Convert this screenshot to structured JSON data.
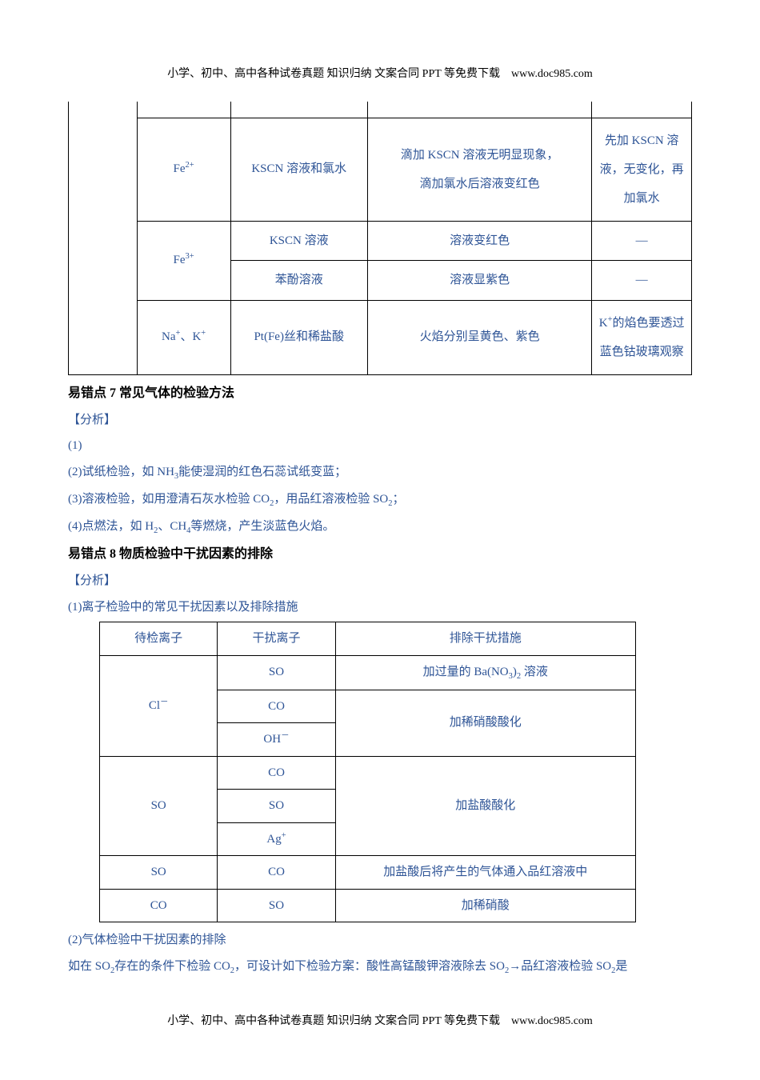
{
  "header": "小学、初中、高中各种试卷真题 知识归纳 文案合同 PPT 等免费下载　www.doc985.com",
  "footer": "小学、初中、高中各种试卷真题 知识归纳 文案合同 PPT 等免费下载　www.doc985.com",
  "table1": {
    "rows": [
      {
        "ion": "Fe²⁺",
        "reagent": "KSCN 溶液和氯水",
        "obs_l1": "滴加 KSCN 溶液无明显现象，",
        "obs_l2": "滴加氯水后溶液变红色",
        "note": "先加 KSCN 溶液，无变化，再加氯水"
      },
      {
        "ion": "Fe³⁺",
        "reagent1": "KSCN 溶液",
        "obs1": "溶液变红色",
        "note1": "—",
        "reagent2": "苯酚溶液",
        "obs2": "溶液显紫色",
        "note2": "—"
      },
      {
        "ion": "Na⁺、K⁺",
        "reagent": "Pt(Fe)丝和稀盐酸",
        "obs": "火焰分别呈黄色、紫色",
        "note": "K⁺的焰色要透过蓝色钴玻璃观察"
      }
    ]
  },
  "section7": {
    "title": "易错点 7 常见气体的检验方法",
    "analysis_label": "【分析】",
    "p1": "(1)",
    "p2": "(2)试纸检验，如 NH₃能使湿润的红色石蕊试纸变蓝；",
    "p3": "(3)溶液检验，如用澄清石灰水检验 CO₂，用品红溶液检验 SO₂；",
    "p4": "(4)点燃法，如 H₂、CH₄等燃烧，产生淡蓝色火焰。"
  },
  "section8": {
    "title": "易错点 8 物质检验中干扰因素的排除",
    "analysis_label": "【分析】",
    "p1": "(1)离子检验中的常见干扰因素以及排除措施"
  },
  "table2": {
    "header": {
      "c1": "待检离子",
      "c2": "干扰离子",
      "c3": "排除干扰措施"
    },
    "rows": [
      {
        "c1": "Cl⁻",
        "c2a": "SO",
        "c3a": "加过量的 Ba(NO₃)₂ 溶液",
        "c2b": "CO",
        "c2c": "OH⁻",
        "c3bc": "加稀硝酸酸化"
      },
      {
        "c1": "SO",
        "c2a": "CO",
        "c2b": "SO",
        "c2c": "Ag⁺",
        "c3": "加盐酸酸化"
      },
      {
        "c1": "SO",
        "c2": "CO",
        "c3": "加盐酸后将产生的气体通入品红溶液中"
      },
      {
        "c1": "CO",
        "c2": "SO",
        "c3": "加稀硝酸"
      }
    ]
  },
  "tail": {
    "p1": "(2)气体检验中干扰因素的排除",
    "p2": "如在 SO₂存在的条件下检验 CO₂，可设计如下检验方案：酸性高锰酸钾溶液除去 SO₂→品红溶液检验 SO₂是"
  }
}
